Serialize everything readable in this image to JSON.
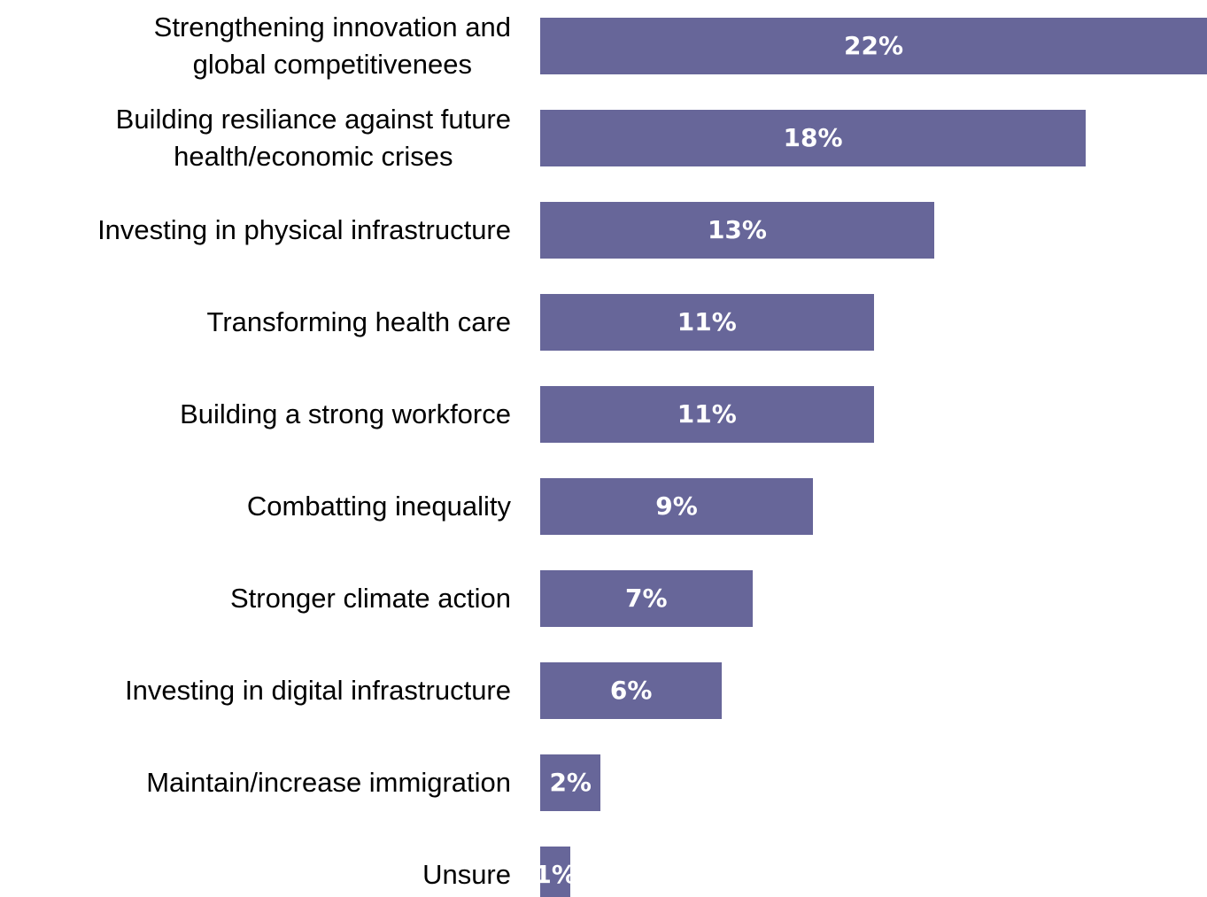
{
  "chart_data": {
    "type": "bar",
    "orientation": "horizontal",
    "categories": [
      "Strengthening innovation and\nglobal competitivenees",
      "Building resiliance against future\nhealth/economic crises",
      "Investing in physical infrastructure",
      "Transforming health care",
      "Building a strong workforce",
      "Combatting inequality",
      "Stronger climate action",
      "Investing in digital infrastructure",
      "Maintain/increase immigration",
      "Unsure"
    ],
    "values": [
      22,
      18,
      13,
      11,
      11,
      9,
      7,
      6,
      2,
      1
    ],
    "value_labels": [
      "22%",
      "18%",
      "13%",
      "11%",
      "11%",
      "9%",
      "7%",
      "6%",
      "2%",
      "1%"
    ],
    "color": "#676699",
    "xlim": [
      0,
      22
    ]
  }
}
